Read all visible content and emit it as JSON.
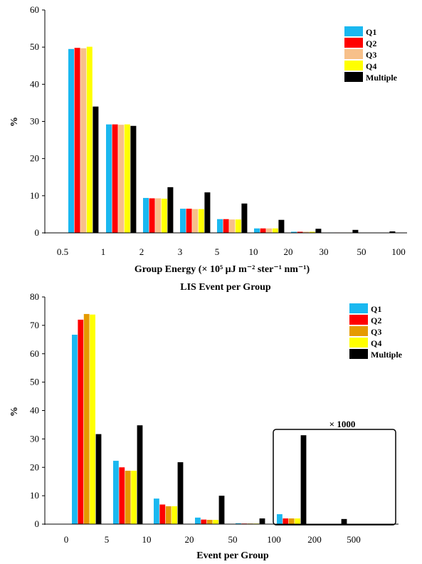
{
  "chart_data": [
    {
      "type": "bar",
      "title": "",
      "xlabel": "Group Energy (× 10⁵ μJ m⁻² ster⁻¹ nm⁻¹)",
      "ylabel": "%",
      "ylim": [
        0,
        60
      ],
      "yticks": [
        "0",
        "10",
        "20",
        "30",
        "40",
        "50",
        "60"
      ],
      "xtick_labels": [
        "0.5",
        "1",
        "2",
        "3",
        "5",
        "10",
        "20",
        "30",
        "50",
        "100"
      ],
      "legend_position": "top-right",
      "colors": {
        "Q1": "#1ab8f0",
        "Q2": "#ff0000",
        "Q3": "#f7c08a",
        "Q4": "#ffff00",
        "Multiple": "#000000"
      },
      "series": [
        {
          "name": "Q1",
          "values": [
            49.5,
            29.2,
            9.4,
            6.5,
            3.7,
            1.2,
            0.3,
            0.1,
            0.05,
            0.0
          ]
        },
        {
          "name": "Q2",
          "values": [
            49.8,
            29.2,
            9.3,
            6.5,
            3.7,
            1.2,
            0.3,
            0.1,
            0.05,
            0.0
          ]
        },
        {
          "name": "Q3",
          "values": [
            49.7,
            29.1,
            9.3,
            6.4,
            3.6,
            1.2,
            0.3,
            0.1,
            0.05,
            0.0
          ]
        },
        {
          "name": "Q4",
          "values": [
            50.1,
            29.2,
            9.2,
            6.4,
            3.6,
            1.2,
            0.3,
            0.1,
            0.05,
            0.0
          ]
        },
        {
          "name": "Multiple",
          "values": [
            34.0,
            28.8,
            12.3,
            10.9,
            7.9,
            3.5,
            1.1,
            0.8,
            0.4,
            0.0
          ]
        }
      ]
    },
    {
      "type": "bar",
      "title": "LIS Event per Group",
      "xlabel": "Event per Group",
      "ylabel": "%",
      "ylim": [
        0,
        80
      ],
      "yticks": [
        "0",
        "10",
        "20",
        "30",
        "40",
        "50",
        "60",
        "70",
        "80"
      ],
      "xtick_labels": [
        "0",
        "5",
        "10",
        "20",
        "50",
        "100",
        "200",
        "500"
      ],
      "legend_position": "top-right",
      "annotation": "× 1000",
      "colors": {
        "Q1": "#1ab8f0",
        "Q2": "#ff0000",
        "Q3": "#e59a00",
        "Q4": "#ffff00",
        "Multiple": "#000000"
      },
      "series": [
        {
          "name": "Q1",
          "values": [
            66.7,
            22.3,
            9.0,
            2.3,
            0.3,
            3.5,
            0.0
          ]
        },
        {
          "name": "Q2",
          "values": [
            72.0,
            20.0,
            6.9,
            1.6,
            0.2,
            2.0,
            0.0
          ]
        },
        {
          "name": "Q3",
          "values": [
            74.0,
            18.8,
            6.3,
            1.5,
            0.2,
            2.0,
            0.0
          ]
        },
        {
          "name": "Q4",
          "values": [
            73.8,
            18.8,
            6.3,
            1.5,
            0.2,
            2.0,
            0.0
          ]
        },
        {
          "name": "Multiple",
          "values": [
            31.7,
            34.8,
            21.8,
            10.0,
            2.0,
            31.3,
            1.8
          ]
        }
      ]
    }
  ]
}
